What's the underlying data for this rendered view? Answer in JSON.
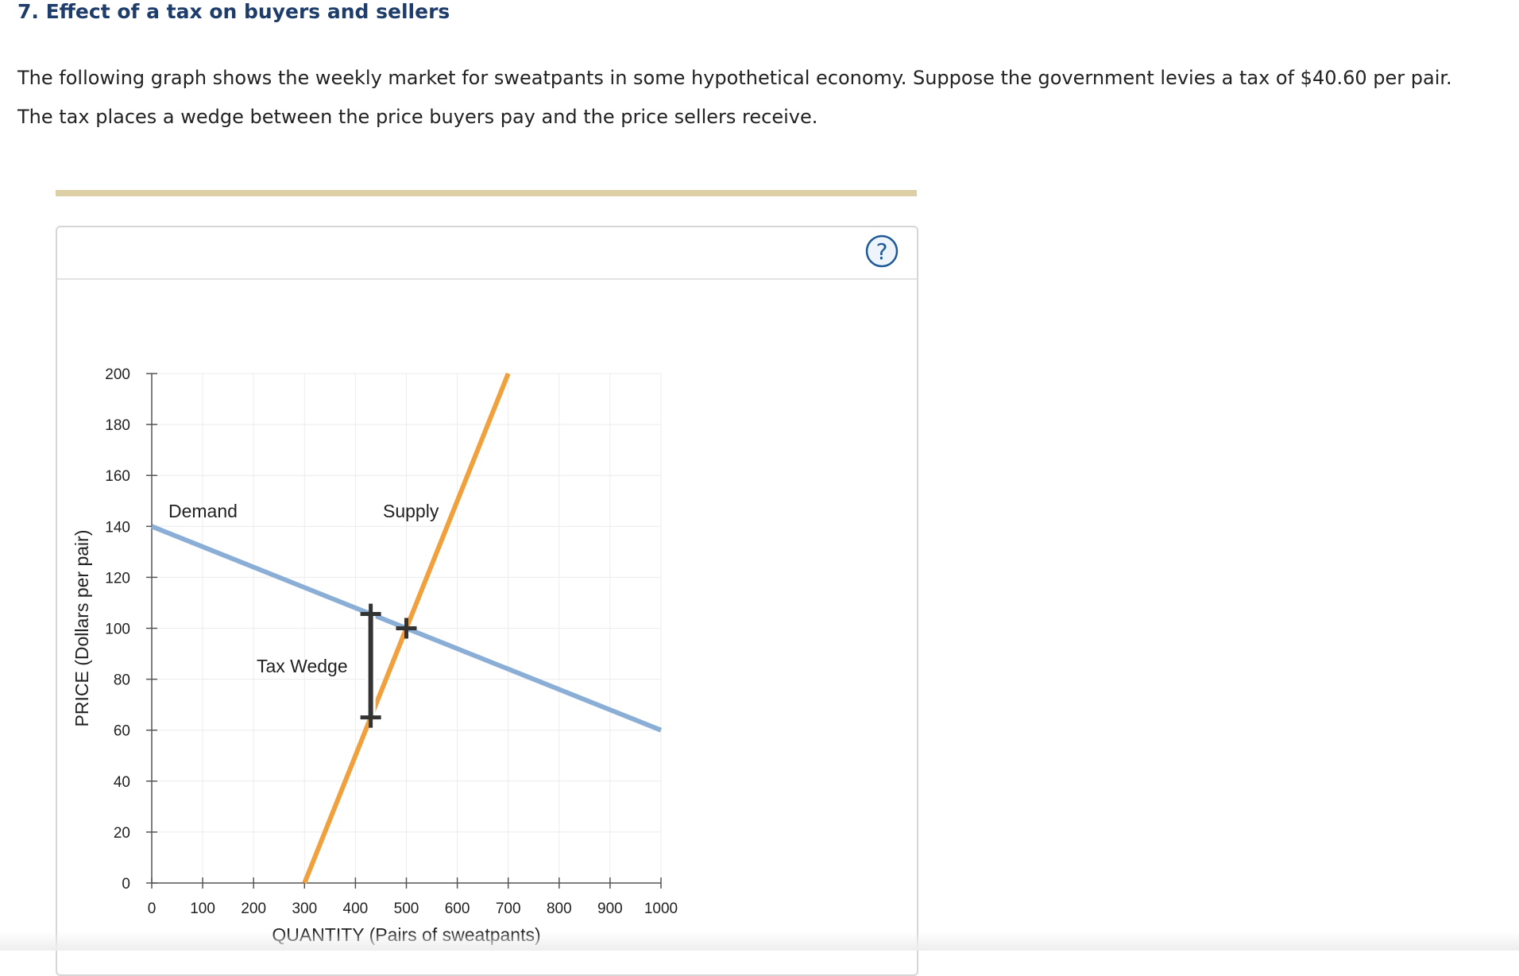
{
  "question": {
    "title": "7. Effect of a tax on buyers and sellers",
    "line1": "The following graph shows the weekly market for sweatpants in some hypothetical economy. Suppose the government levies a tax of $40.60 per pair.",
    "line2": "The tax places a wedge between the price buyers pay and the price sellers receive."
  },
  "help": {
    "symbol": "?",
    "icon": "help-icon"
  },
  "colors": {
    "demand": "#8aaed6",
    "supply": "#f0a03c",
    "wedge": "#333333",
    "grid": "#ececec",
    "axis": "#555555",
    "rule": "#dccfa6",
    "help": "#1f5a96"
  },
  "chart_data": {
    "type": "line",
    "xlabel": "QUANTITY (Pairs of sweatpants)",
    "ylabel": "PRICE (Dollars per pair)",
    "xlim": [
      0,
      1000
    ],
    "ylim": [
      0,
      200
    ],
    "x_ticks": [
      0,
      100,
      200,
      300,
      400,
      500,
      600,
      700,
      800,
      900,
      1000
    ],
    "y_ticks": [
      0,
      20,
      40,
      60,
      80,
      100,
      120,
      140,
      160,
      180,
      200
    ],
    "grid": true,
    "series": [
      {
        "name": "Demand",
        "x": [
          0,
          1000
        ],
        "y": [
          140,
          60
        ]
      },
      {
        "name": "Supply",
        "x": [
          300,
          700
        ],
        "y": [
          0,
          200
        ]
      }
    ],
    "tax_wedge": {
      "label": "Tax Wedge",
      "quantity": 430,
      "buyer_price": 105.6,
      "seller_price": 65,
      "tax": 40.6
    },
    "equilibrium": {
      "quantity": 500,
      "price": 100
    }
  }
}
